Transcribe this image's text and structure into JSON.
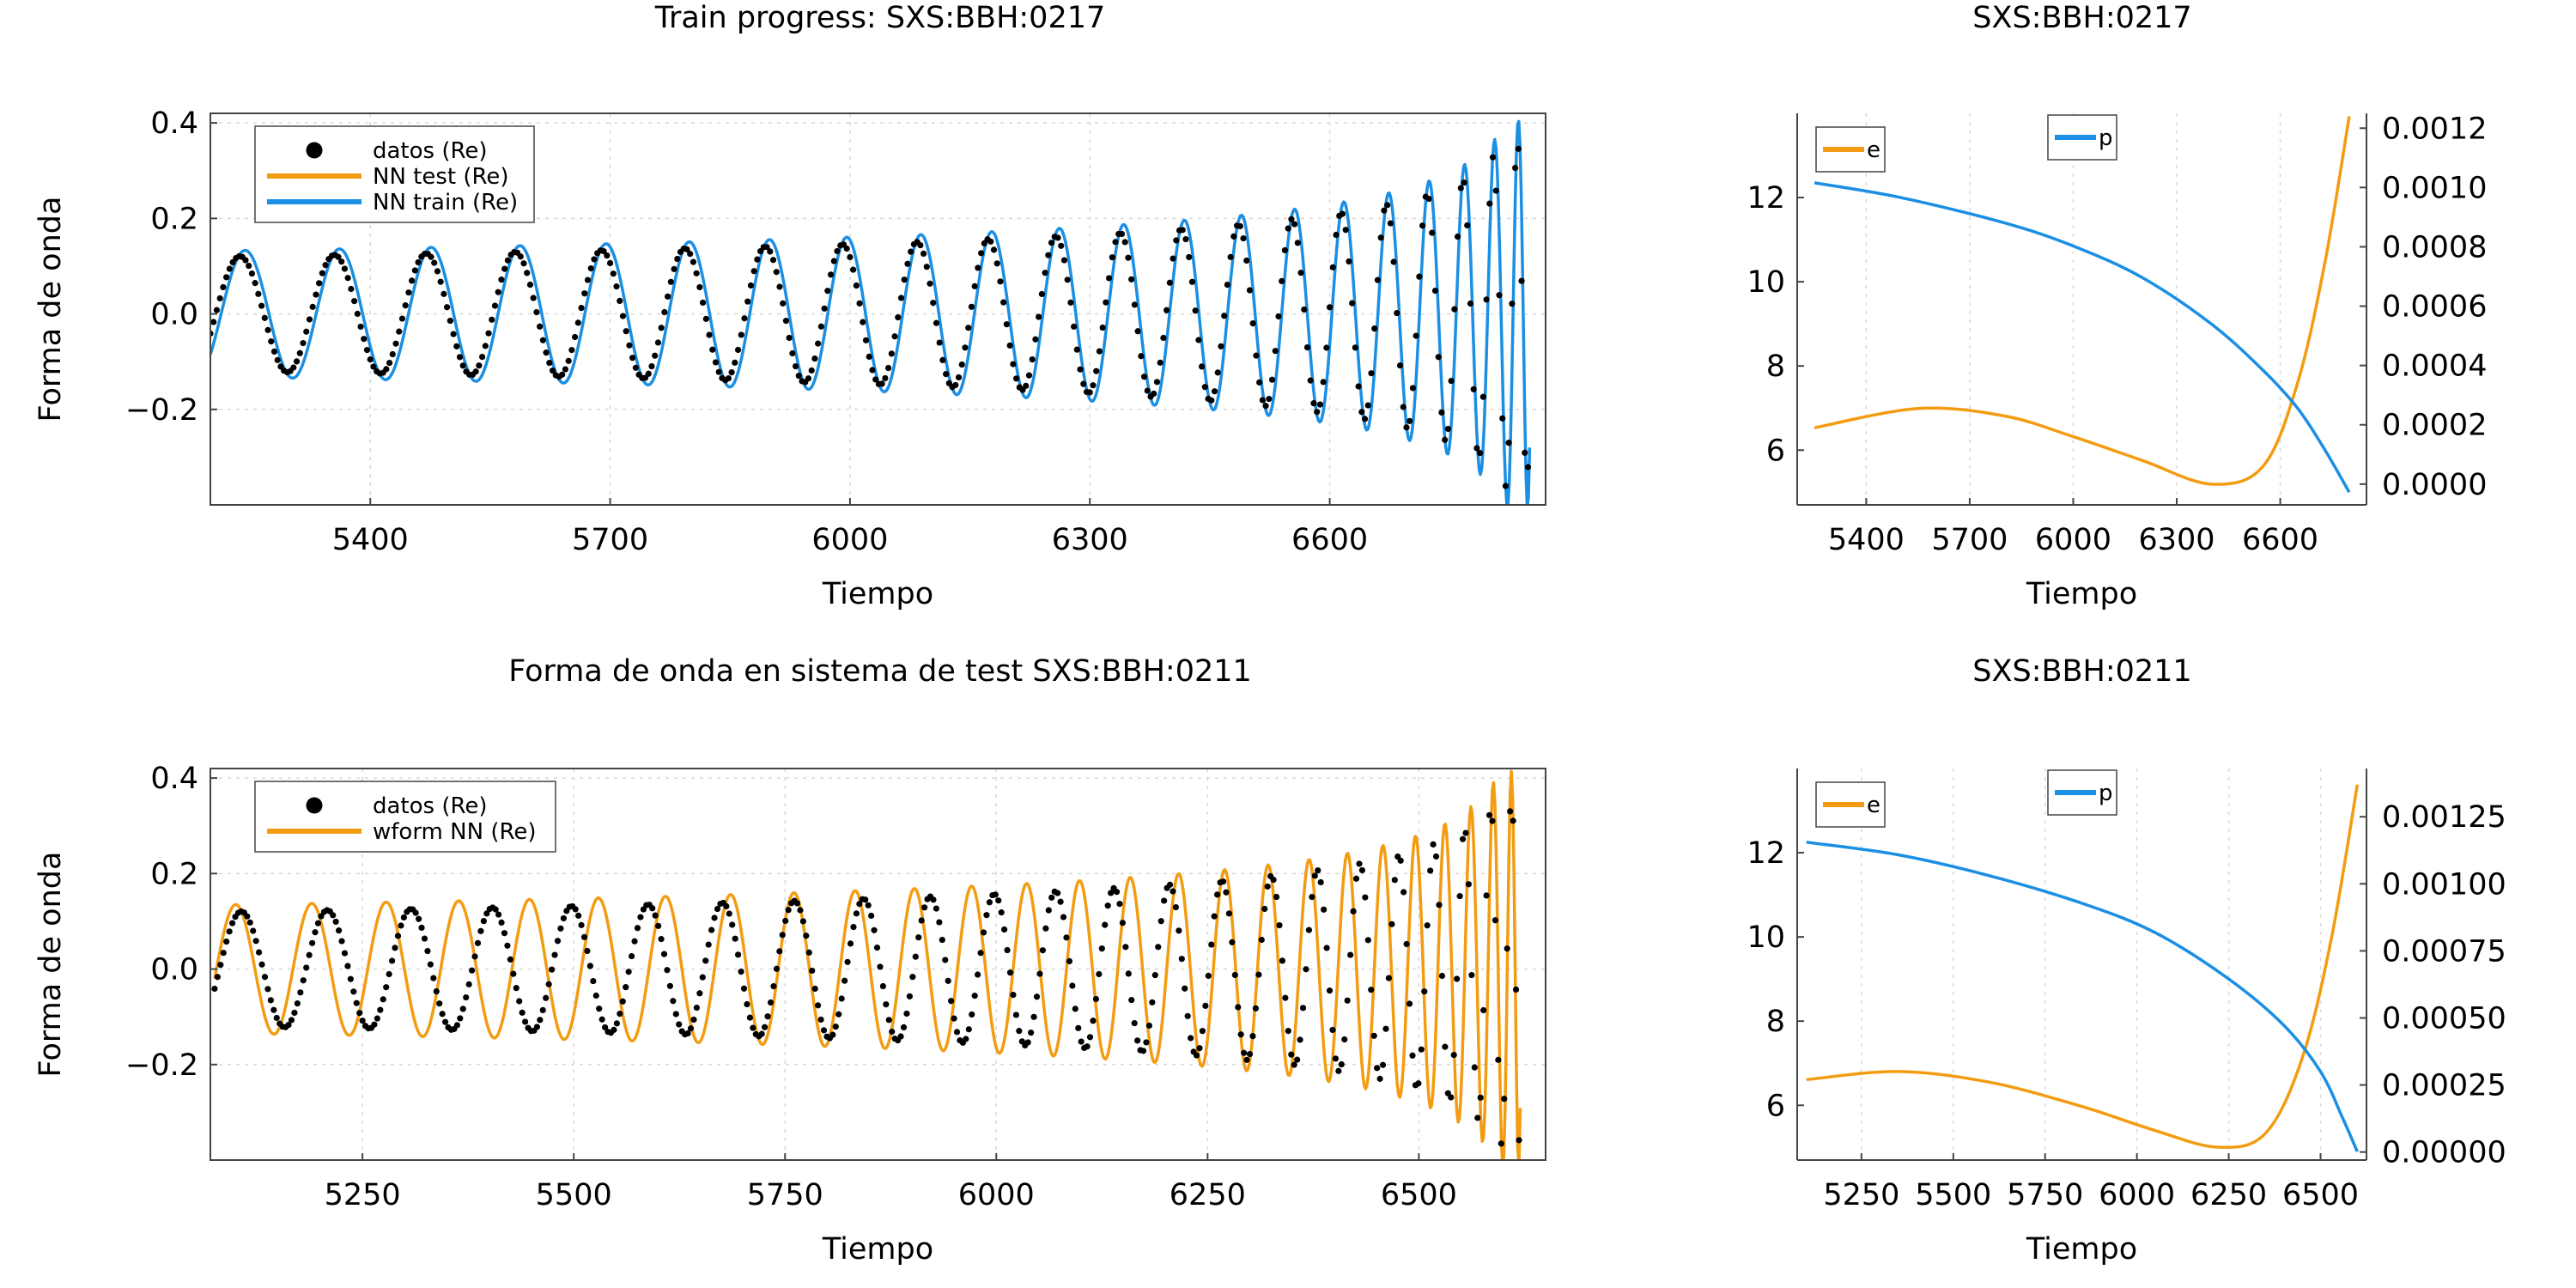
{
  "colors": {
    "data": "#000000",
    "orange": "#f39c12",
    "blue": "#1a8fe3"
  },
  "chart_data": [
    {
      "id": "p1",
      "type": "scatter+line",
      "title": "Train progress: SXS:BBH:0217",
      "xlabel": "Tiempo",
      "ylabel": "Forma de onda",
      "xlim": [
        5200,
        6870
      ],
      "ylim": [
        -0.4,
        0.42
      ],
      "xticks": [
        5400,
        5700,
        6000,
        6300,
        6600
      ],
      "yticks": [
        -0.2,
        0.0,
        0.2,
        0.4
      ],
      "xtick_labels": [
        "5400",
        "5700",
        "6000",
        "6300",
        "6600"
      ],
      "ytick_labels": [
        "−0.2",
        "0.0",
        "0.2",
        "0.4"
      ],
      "grid": true,
      "legend_position": "top-left",
      "wave": {
        "t_start": 5200,
        "t_end": 6850,
        "t_merger": 6862,
        "amp0": 0.12,
        "amp_end": 0.37,
        "cycles": 22,
        "end_step": 4
      },
      "series": [
        {
          "name": "datos (Re)",
          "kind": "scatter",
          "color": "#000000",
          "phase": 0.0,
          "amp_scale": 1.0
        },
        {
          "name": "NN test (Re)",
          "kind": "line",
          "color": "#f39c12",
          "phase": 0.0,
          "amp_scale": 1.0,
          "hidden_under": true
        },
        {
          "name": "NN train (Re)",
          "kind": "line",
          "color": "#1a8fe3",
          "phase": -0.35,
          "amp_scale": 1.1
        }
      ]
    },
    {
      "id": "p2",
      "type": "line",
      "title": "SXS:BBH:0217",
      "xlabel": "Tiempo",
      "xlim": [
        5200,
        6850
      ],
      "ylim_left": [
        4.7,
        14.0
      ],
      "ylim_right": [
        -7e-05,
        0.00125
      ],
      "xticks": [
        5400,
        5700,
        6000,
        6300,
        6600
      ],
      "xtick_labels": [
        "5400",
        "5700",
        "6000",
        "6300",
        "6600"
      ],
      "yticks_left": [
        6,
        8,
        10,
        12
      ],
      "ytick_labels_left": [
        "6",
        "8",
        "10",
        "12"
      ],
      "yticks_right": [
        0.0,
        0.0002,
        0.0004,
        0.0006,
        0.0008,
        0.001,
        0.0012
      ],
      "ytick_labels_right": [
        "0.0000",
        "0.0002",
        "0.0004",
        "0.0006",
        "0.0008",
        "0.0010",
        "0.0012"
      ],
      "grid": true,
      "series": [
        {
          "name": "e",
          "axis": "right",
          "color": "#f39c12",
          "x": [
            5250,
            5550,
            5800,
            6000,
            6200,
            6400,
            6550,
            6650,
            6730,
            6800
          ],
          "y": [
            0.00019,
            0.000255,
            0.00023,
            0.00016,
            8e-05,
            0.0,
            6e-05,
            0.00034,
            0.00075,
            0.00124
          ]
        },
        {
          "name": "p",
          "axis": "left",
          "color": "#1a8fe3",
          "x": [
            5250,
            5500,
            5800,
            6000,
            6200,
            6400,
            6550,
            6650,
            6730,
            6800
          ],
          "y": [
            12.35,
            12.0,
            11.4,
            10.85,
            10.1,
            9.0,
            7.9,
            7.0,
            6.0,
            5.0
          ]
        }
      ]
    },
    {
      "id": "p3",
      "type": "scatter+line",
      "title": "Forma de onda en sistema de test SXS:BBH:0211",
      "xlabel": "Tiempo",
      "ylabel": "Forma de onda",
      "xlim": [
        5070,
        6650
      ],
      "ylim": [
        -0.4,
        0.42
      ],
      "xticks": [
        5250,
        5500,
        5750,
        6000,
        6250,
        6500
      ],
      "yticks": [
        -0.2,
        0.0,
        0.2,
        0.4
      ],
      "xtick_labels": [
        "5250",
        "5500",
        "5750",
        "6000",
        "6250",
        "6500"
      ],
      "ytick_labels": [
        "−0.2",
        "0.0",
        "0.2",
        "0.4"
      ],
      "grid": true,
      "legend_position": "top-left",
      "wave": {
        "t_start": 5075,
        "t_end": 6620,
        "t_merger": 6632,
        "amp0": 0.12,
        "amp_end": 0.37,
        "cycles": 24,
        "end_step": 3.5
      },
      "series": [
        {
          "name": "datos (Re)",
          "kind": "scatter",
          "color": "#000000",
          "phase": 0.0,
          "amp_scale": 1.0
        },
        {
          "name": "wform NN (Re)",
          "kind": "line",
          "color": "#f39c12",
          "phase": 0.2,
          "amp_scale": 1.12,
          "cycles_extra": 3.2
        }
      ]
    },
    {
      "id": "p4",
      "type": "line",
      "title": "SXS:BBH:0211",
      "xlabel": "Tiempo",
      "xlim": [
        5075,
        6625
      ],
      "ylim_left": [
        4.7,
        14.0
      ],
      "ylim_right": [
        -3e-05,
        0.00143
      ],
      "xticks": [
        5250,
        5500,
        5750,
        6000,
        6250,
        6500
      ],
      "xtick_labels": [
        "5250",
        "5500",
        "5750",
        "6000",
        "6250",
        "6500"
      ],
      "yticks_left": [
        6,
        8,
        10,
        12
      ],
      "ytick_labels_left": [
        "6",
        "8",
        "10",
        "12"
      ],
      "yticks_right": [
        0.0,
        0.00025,
        0.0005,
        0.00075,
        0.001,
        0.00125
      ],
      "ytick_labels_right": [
        "0.00000",
        "0.00025",
        "0.00050",
        "0.00075",
        "0.00100",
        "0.00125"
      ],
      "grid": true,
      "series": [
        {
          "name": "e",
          "axis": "right",
          "color": "#f39c12",
          "x": [
            5100,
            5350,
            5600,
            5850,
            6050,
            6220,
            6350,
            6450,
            6530,
            6600
          ],
          "y": [
            0.00027,
            0.0003,
            0.00026,
            0.00017,
            8e-05,
            1.8e-05,
            7e-05,
            0.00035,
            0.0008,
            0.00137
          ]
        },
        {
          "name": "p",
          "axis": "left",
          "color": "#1a8fe3",
          "x": [
            5100,
            5350,
            5600,
            5850,
            6050,
            6250,
            6400,
            6500,
            6560,
            6600
          ],
          "y": [
            12.25,
            11.95,
            11.45,
            10.8,
            10.1,
            9.0,
            7.9,
            6.8,
            5.7,
            4.9
          ]
        }
      ]
    }
  ]
}
